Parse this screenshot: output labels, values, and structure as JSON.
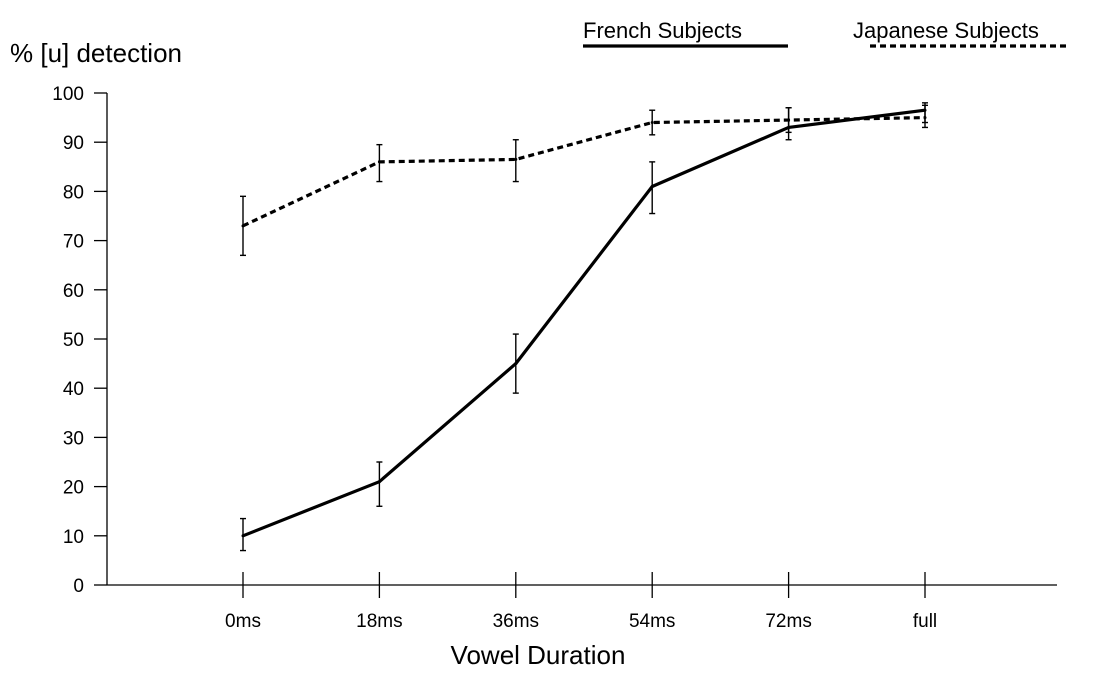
{
  "chart_data": {
    "type": "line",
    "title": "",
    "xlabel": "Vowel Duration",
    "ylabel": "% [u] detection",
    "categories": [
      "0ms",
      "18ms",
      "36ms",
      "54ms",
      "72ms",
      "full"
    ],
    "ylim": [
      0,
      100
    ],
    "yticks": [
      0,
      10,
      20,
      30,
      40,
      50,
      60,
      70,
      80,
      90,
      100
    ],
    "grid": false,
    "legend_position": "top-right",
    "series": [
      {
        "name": "French Subjects",
        "line_style": "solid",
        "color": "#000000",
        "values": [
          10,
          21,
          45,
          81,
          93,
          96.5
        ],
        "error_low": [
          7,
          16,
          39,
          75.5,
          90.5,
          94
        ],
        "error_high": [
          13.5,
          25,
          51,
          86,
          97,
          98
        ]
      },
      {
        "name": "Japanese Subjects",
        "line_style": "dashed",
        "color": "#000000",
        "values": [
          73,
          86,
          86.5,
          94,
          94.5,
          95
        ],
        "error_low": [
          67,
          82,
          82,
          91.5,
          92,
          93
        ],
        "error_high": [
          79,
          89.5,
          90.5,
          96.5,
          97,
          97.5
        ]
      }
    ]
  }
}
